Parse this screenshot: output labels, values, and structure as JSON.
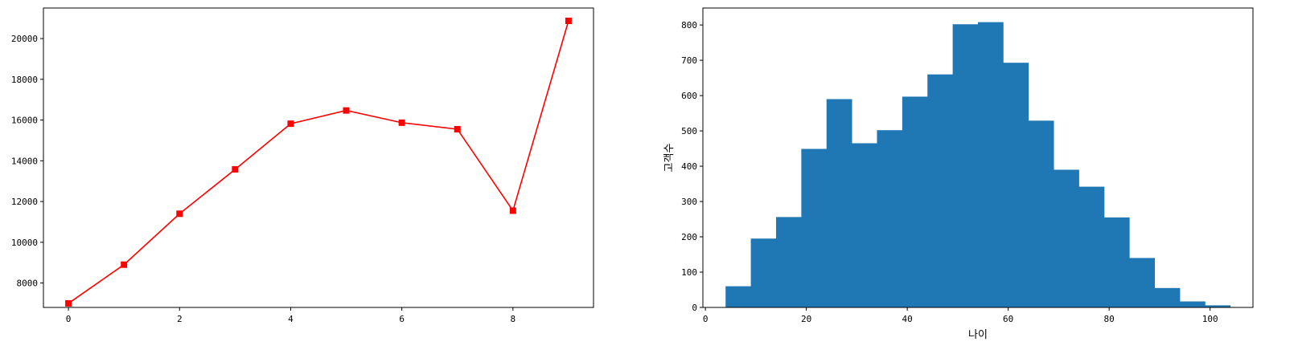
{
  "chart_data": [
    {
      "type": "line",
      "title": "",
      "xlabel": "",
      "ylabel": "",
      "x": [
        0,
        1,
        2,
        3,
        4,
        5,
        6,
        7,
        8,
        9
      ],
      "series": [
        {
          "values": [
            7000,
            8900,
            11400,
            13580,
            15820,
            16470,
            15870,
            15550,
            11550,
            20870
          ],
          "color": "#ff0000",
          "marker": "square"
        }
      ],
      "xlim": [
        -0.45,
        9.45
      ],
      "ylim": [
        6800,
        21500
      ],
      "xticks": [
        0,
        2,
        4,
        6,
        8
      ],
      "yticks": [
        8000,
        10000,
        12000,
        14000,
        16000,
        18000,
        20000
      ],
      "grid": false
    },
    {
      "type": "bar",
      "subtype": "histogram",
      "title": "",
      "xlabel": "나이",
      "ylabel": "고객수",
      "bin_edges": [
        4,
        9,
        14,
        19,
        24,
        29,
        34,
        39,
        44,
        49,
        54,
        59,
        64,
        69,
        74,
        79,
        84,
        89,
        94,
        99,
        104
      ],
      "values": [
        60,
        195,
        256,
        449,
        590,
        465,
        502,
        597,
        660,
        802,
        808,
        693,
        529,
        390,
        342,
        255,
        140,
        55,
        17,
        6
      ],
      "color": "#1f77b4",
      "xlim": [
        -0.5,
        108.5
      ],
      "ylim": [
        0,
        848
      ],
      "xticks": [
        0,
        20,
        40,
        60,
        80,
        100
      ],
      "yticks": [
        0,
        100,
        200,
        300,
        400,
        500,
        600,
        700,
        800
      ],
      "grid": false
    }
  ]
}
